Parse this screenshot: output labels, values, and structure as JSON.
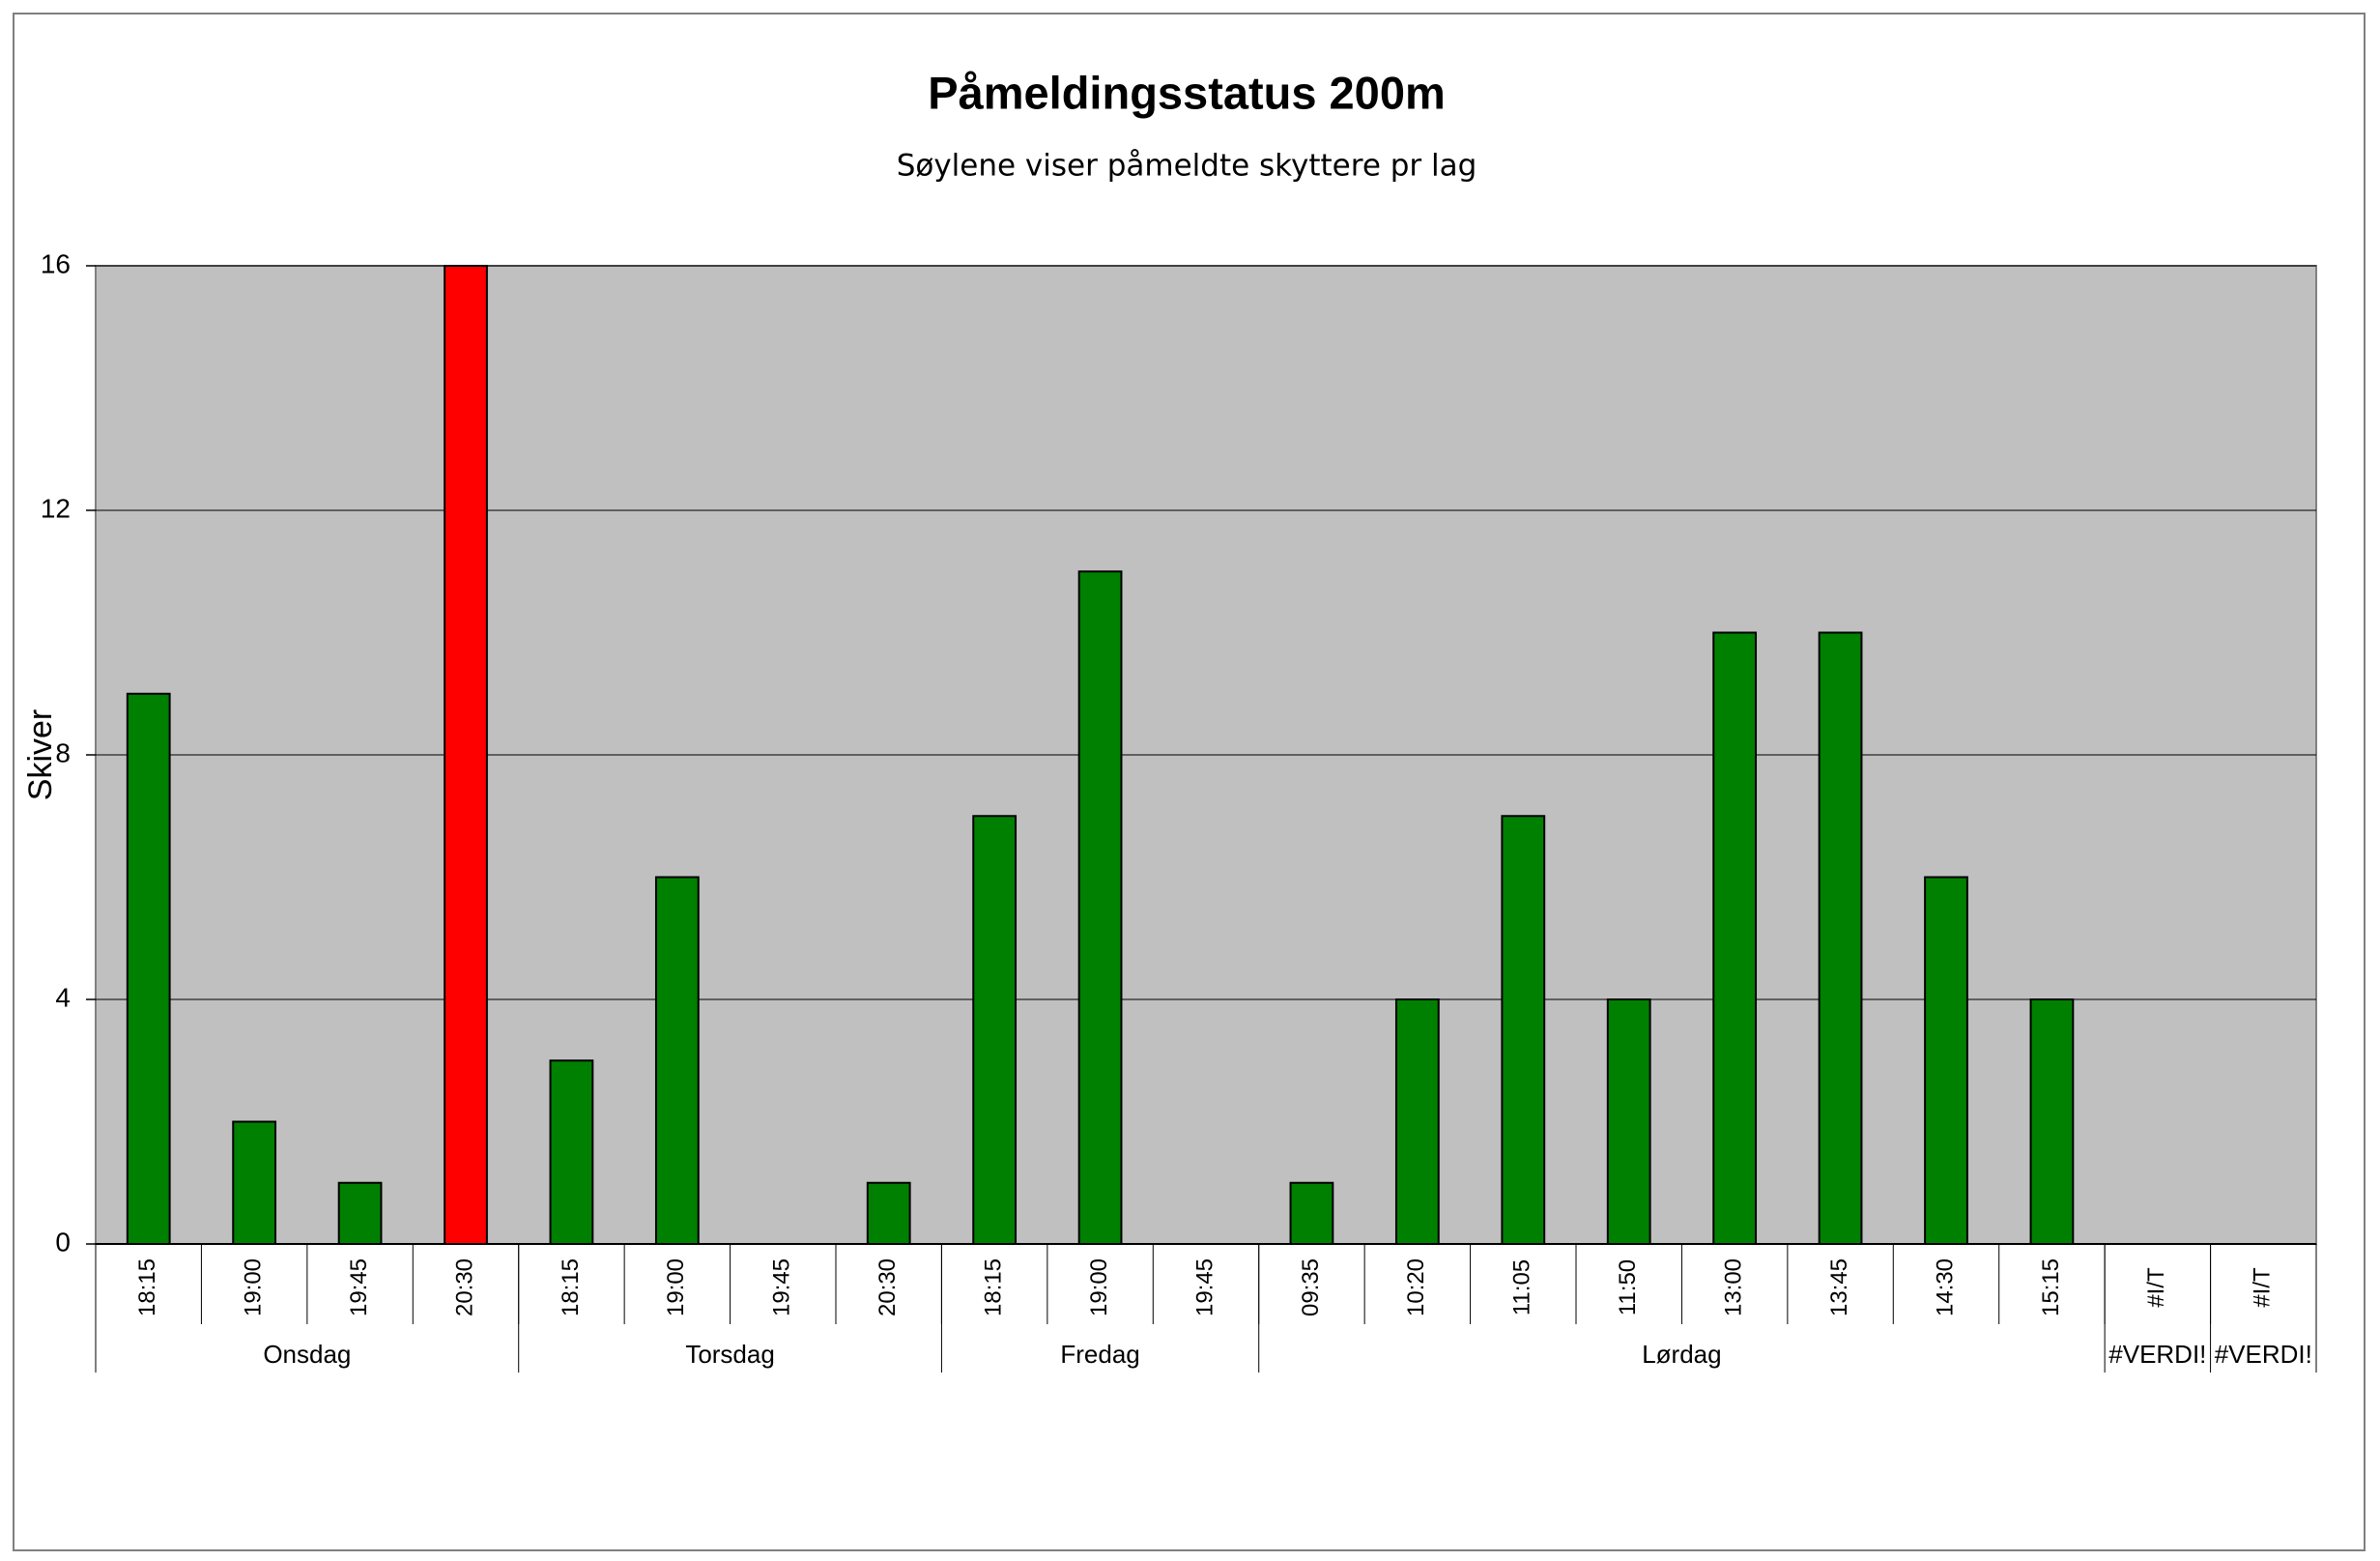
{
  "chart_data": {
    "type": "bar",
    "title": "Påmeldingsstatus 200m",
    "subtitle": "Søylene viser påmeldte skyttere pr lag",
    "y_label": "Skiver",
    "categories": [
      "18:15",
      "19:00",
      "19:45",
      "20:30",
      "18:15",
      "19:00",
      "19:45",
      "20:30",
      "18:15",
      "19:00",
      "19:45",
      "09:35",
      "10:20",
      "11:05",
      "11:50",
      "13:00",
      "13:45",
      "14:30",
      "15:15",
      "#I/T",
      "#I/T"
    ],
    "groups": [
      {
        "label": "Onsdag",
        "size": 4
      },
      {
        "label": "Torsdag",
        "size": 4
      },
      {
        "label": "Fredag",
        "size": 3
      },
      {
        "label": "Lørdag",
        "size": 8
      },
      {
        "label": "#VERDI!",
        "size": 1
      },
      {
        "label": "#VERDI!",
        "size": 1
      }
    ],
    "values": [
      9,
      2,
      1,
      16,
      3,
      6,
      0,
      1,
      7,
      11,
      0,
      1,
      4,
      7,
      4,
      10,
      10,
      6,
      4,
      null,
      null
    ],
    "colors": [
      "#008000",
      "#008000",
      "#008000",
      "#ff0000",
      "#008000",
      "#008000",
      "#008000",
      "#008000",
      "#008000",
      "#008000",
      "#008000",
      "#008000",
      "#008000",
      "#008000",
      "#008000",
      "#008000",
      "#008000",
      "#008000",
      "#008000",
      null,
      null
    ],
    "ylim": [
      0,
      16
    ],
    "yticks": [
      0,
      4,
      8,
      12,
      16
    ],
    "grid": true,
    "plot_background": "#c0c0c0"
  }
}
